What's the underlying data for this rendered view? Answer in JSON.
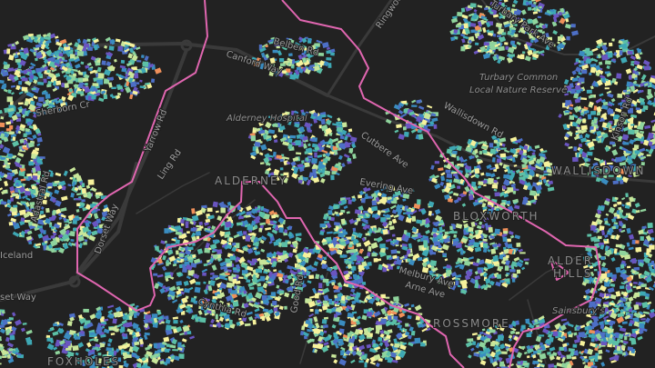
{
  "map": {
    "background": "#222222",
    "boundary_color": "#e066b0",
    "road_color": "#3a3a3a",
    "building_palette": [
      "#f6f29c",
      "#c8e69a",
      "#8fd49c",
      "#5cc0a6",
      "#3ea8b4",
      "#3a8cc0",
      "#4d6fc6",
      "#6a55c0",
      "#f0905a"
    ],
    "labels": {
      "canford_way": "Canford Way",
      "belben_rd": "Belben Rd",
      "alderney_hospital": "Alderney Hospital",
      "sherborn_cr": "Sherborn Cr",
      "yarrow_rd": "Yarrow Rd",
      "ling_rd": "Ling Rd",
      "alderney": "ALDERNEY",
      "dorset_way": "Dorset Way",
      "dorset_way_west": "set Way",
      "adastral_rd": "Adastral Rd",
      "iceland": "Iceland",
      "foxholes": "FOXHOLES",
      "cynthia_rd": "Cynthia Rd",
      "good_rd": "Good Rd",
      "ringwood_rd": "Ringwood Rd",
      "turbary_park_ave": "Turbary Park Ave",
      "turbary_common_1": "Turbary Common",
      "turbary_common_2": "Local Nature Reserve",
      "wallisdown_rd": "Wallisdown Rd",
      "wallisdown": "WALLISDOWN",
      "kinson_rd": "Kinson Rd",
      "cutbere_ave": "Cutbere Ave",
      "evering_ave": "Evering Ave",
      "bloxworth": "BLOXWORTH",
      "alder_hills_1": "ALDER",
      "alder_hills_2": "HILLS",
      "sainsburys": "Sainsbury's",
      "melbury_ave": "Melbury Ave",
      "arne_ave": "Arne Ave",
      "rossmore": "ROSSMORE"
    }
  }
}
